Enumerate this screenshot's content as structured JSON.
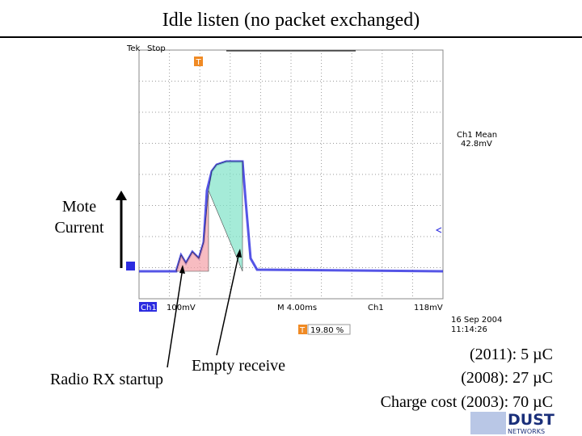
{
  "header": {
    "title": "Idle listen (no packet exchanged)"
  },
  "scope": {
    "brand": "Tek",
    "status": "Stop",
    "measure_label": "Ch1 Mean",
    "measure_value": "42.8mV",
    "channel": "Ch1",
    "volts_div": "100mV",
    "time_div": "M 4.00ms",
    "trigger_channel": "Ch1",
    "trigger_level": "118mV",
    "trigger_marker": "T",
    "trigger_position": "19.80 %",
    "date": "16 Sep  2004",
    "time": "11:14:26"
  },
  "axis_label": {
    "line1": "Mote",
    "line2": "Current"
  },
  "annotations": {
    "rx_startup": "Radio RX startup",
    "empty_receive": "Empty receive"
  },
  "costs": [
    "(2011): 5 µC",
    "(2008): 27 µC",
    "Charge cost (2003): 70 µC"
  ],
  "logo": {
    "name": "DUST",
    "sub": "NETWORKS"
  }
}
